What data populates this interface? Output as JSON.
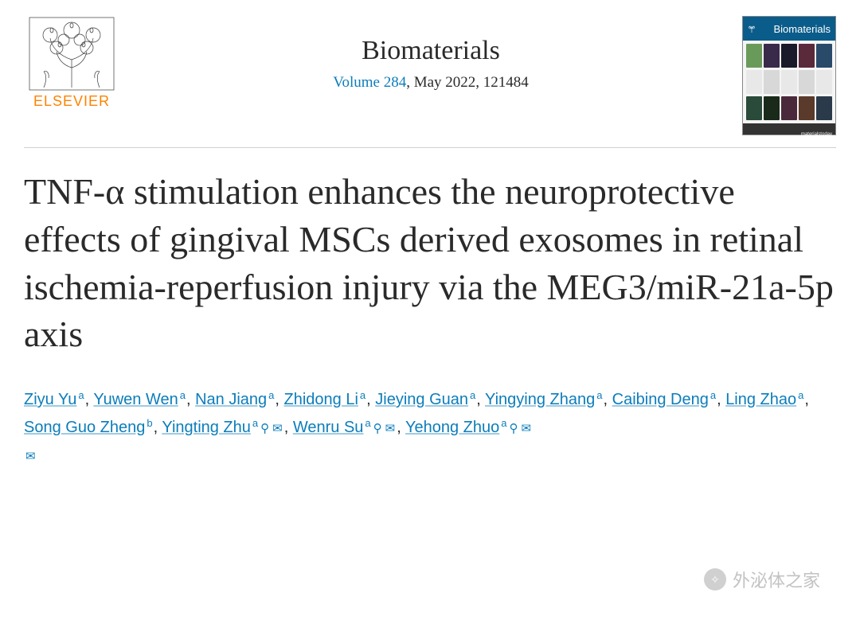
{
  "publisher": {
    "name": "ELSEVIER",
    "logo_color": "#ff8200",
    "tree_stroke": "#3a3a3a"
  },
  "journal": {
    "name": "Biomaterials",
    "volume_text": "Volume 284",
    "date_text": "May 2022",
    "article_id": "121484",
    "link_color": "#0c7dbb"
  },
  "cover": {
    "header_bg": "#0a5c8a",
    "header_text": "Biomaterials",
    "footer_text": "materialstoday",
    "cells": [
      [
        "#6a9a5a",
        "#3a2a4a",
        "#1a1a2a",
        "#5a2a3a",
        "#2a4a6a"
      ],
      [
        "#e8e8e8",
        "#d8d8d8",
        "#e8e8e8",
        "#d8d8d8",
        "#e8e8e8"
      ],
      [
        "#2a4a3a",
        "#1a2a1a",
        "#4a2a3a",
        "#5a3a2a",
        "#2a3a4a"
      ]
    ]
  },
  "article": {
    "title": "TNF-α stimulation enhances the neuroprotective effects of gingival MSCs derived exosomes in retinal ischemia-reperfusion injury via the MEG3/miR-21a-5p axis",
    "title_fontsize": 46,
    "title_color": "#2a2a2a"
  },
  "authors": [
    {
      "name": "Ziyu Yu",
      "aff": "a"
    },
    {
      "name": "Yuwen Wen",
      "aff": "a"
    },
    {
      "name": "Nan Jiang",
      "aff": "a"
    },
    {
      "name": "Zhidong Li",
      "aff": "a"
    },
    {
      "name": "Jieying Guan",
      "aff": "a"
    },
    {
      "name": "Yingying Zhang",
      "aff": "a"
    },
    {
      "name": "Caibing Deng",
      "aff": "a"
    },
    {
      "name": "Ling Zhao",
      "aff": "a"
    },
    {
      "name": "Song Guo Zheng",
      "aff": "b"
    },
    {
      "name": "Yingting Zhu",
      "aff": "a",
      "corresponding": true
    },
    {
      "name": "Wenru Su",
      "aff": "a",
      "corresponding": true
    },
    {
      "name": "Yehong Zhuo",
      "aff": "a",
      "corresponding": true
    }
  ],
  "glyphs": {
    "person": "⚲",
    "mail": "✉"
  },
  "watermark": {
    "text": "外泌体之家",
    "icon_label": "公众号"
  }
}
